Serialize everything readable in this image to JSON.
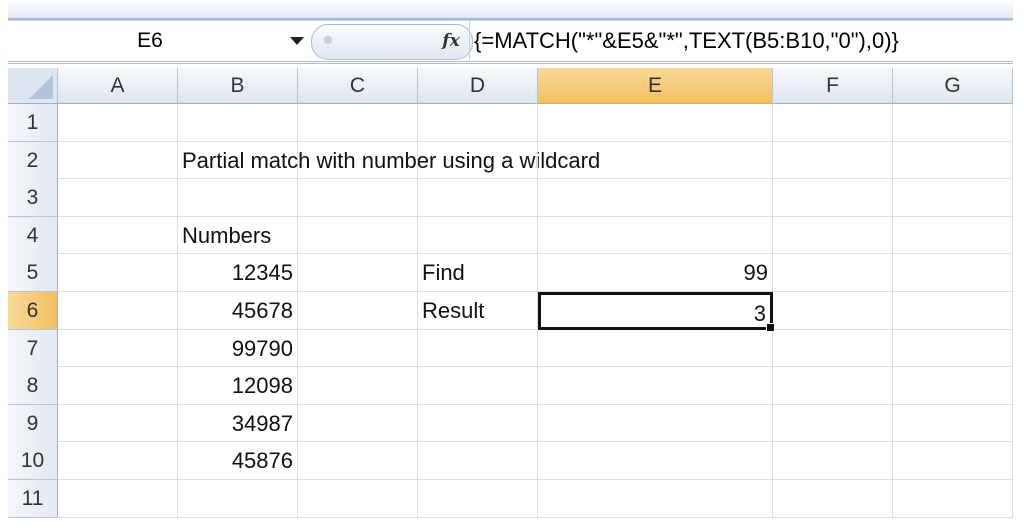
{
  "name_box": "E6",
  "formula": "{=MATCH(\"*\"&E5&\"*\",TEXT(B5:B10,\"0\"),0)}",
  "columns": [
    "A",
    "B",
    "C",
    "D",
    "E",
    "F",
    "G"
  ],
  "selected_column": "E",
  "rows": [
    "1",
    "2",
    "3",
    "4",
    "5",
    "6",
    "7",
    "8",
    "9",
    "10",
    "11"
  ],
  "selected_row": "6",
  "cells": {
    "B2": "Partial match with number using a wildcard",
    "B4": "Numbers",
    "B5": "12345",
    "B6": "45678",
    "B7": "99790",
    "B8": "12098",
    "B9": "34987",
    "B10": "45876",
    "D5": "Find",
    "D6": "Result",
    "E5": "99",
    "E6": "3"
  },
  "numeric_cells": [
    "B5",
    "B6",
    "B7",
    "B8",
    "B9",
    "B10",
    "E5",
    "E6"
  ],
  "active_cell": "E6"
}
